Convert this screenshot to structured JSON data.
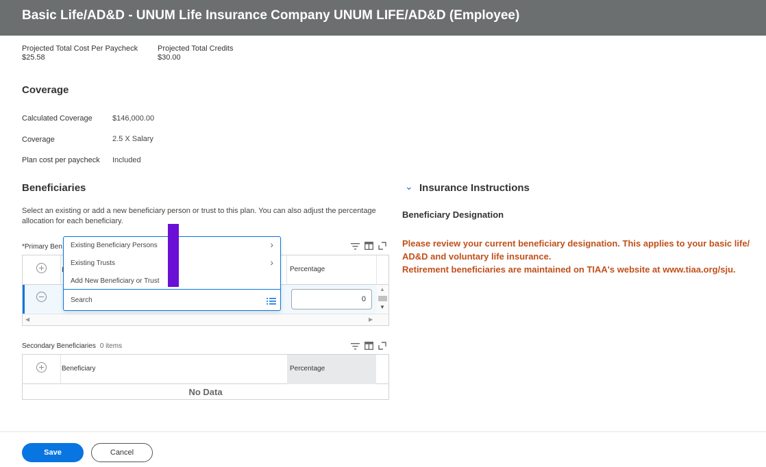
{
  "header": {
    "title": "Basic Life/AD&D - UNUM Life Insurance Company UNUM LIFE/AD&D (Employee)"
  },
  "summary": {
    "cost_label": "Projected Total Cost Per Paycheck",
    "cost_value": "$25.58",
    "credits_label": "Projected Total Credits",
    "credits_value": "$30.00"
  },
  "coverage": {
    "title": "Coverage",
    "rows": [
      {
        "label": "Calculated Coverage",
        "value": "$146,000.00"
      },
      {
        "label": "Coverage",
        "value": "2.5 X Salary"
      },
      {
        "label": "Plan cost per paycheck",
        "value": "Included"
      }
    ]
  },
  "beneficiaries": {
    "title": "Beneficiaries",
    "description": "Select an existing or add a new beneficiary person or trust to this plan. You can also adjust the percentage allocation for each beneficiary.",
    "primary": {
      "label": "*Primary Ben",
      "header_beneficiary": "B",
      "header_percentage": "Percentage",
      "row_percentage_value": "0"
    },
    "dropdown": {
      "items": [
        "Existing Beneficiary Persons",
        "Existing Trusts",
        "Add New Beneficiary or Trust"
      ],
      "search_placeholder": "Search"
    },
    "secondary": {
      "label": "Secondary Beneficiaries",
      "count": "0 items",
      "header_beneficiary": "Beneficiary",
      "header_percentage": "Percentage",
      "empty_text": "No Data"
    }
  },
  "instructions": {
    "title": "Insurance Instructions",
    "subtitle": "Beneficiary Designation",
    "note_line1": "Please review your current beneficiary designation. This applies to your basic life/ AD&D and voluntary life insurance.",
    "note_line2": "Retirement beneficiaries are maintained on TIAA's website at www.tiaa.org/sju."
  },
  "footer": {
    "save_label": "Save",
    "cancel_label": "Cancel"
  },
  "colors": {
    "header_bg": "#6c6f70",
    "accent": "#0875e1",
    "warning_text": "#c0501b",
    "highlight": "#6a0fd6"
  }
}
